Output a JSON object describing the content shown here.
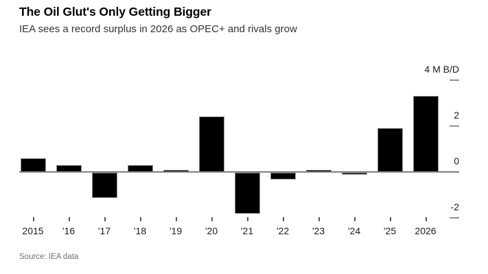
{
  "chart_data": {
    "type": "bar",
    "title": "The Oil Glut's Only Getting Bigger",
    "subtitle": "IEA sees a record surplus in 2026 as OPEC+ and rivals grow",
    "source": "Source: IEA data",
    "categories": [
      "2015",
      "'16",
      "'17",
      "'18",
      "'19",
      "'20",
      "'21",
      "'22",
      "'23",
      "'24",
      "'25",
      "2026"
    ],
    "values": [
      0.6,
      0.3,
      -1.1,
      0.3,
      0.1,
      2.4,
      -1.8,
      -0.3,
      0.1,
      -0.1,
      1.9,
      3.3
    ],
    "unit_label": "4 M B/D",
    "ylim": [
      -2.4,
      4.0
    ],
    "yticks": [
      {
        "value": 4,
        "label": "4 M B/D"
      },
      {
        "value": 2,
        "label": "2"
      },
      {
        "value": 0,
        "label": "0"
      },
      {
        "value": -2,
        "label": "-2"
      }
    ],
    "grid": false,
    "legend": "none",
    "bar_color": "#000000",
    "axis_color": "#7d7d7d",
    "tick_dash_color": "#8f8f8f",
    "x_tick_color": "#555555"
  }
}
